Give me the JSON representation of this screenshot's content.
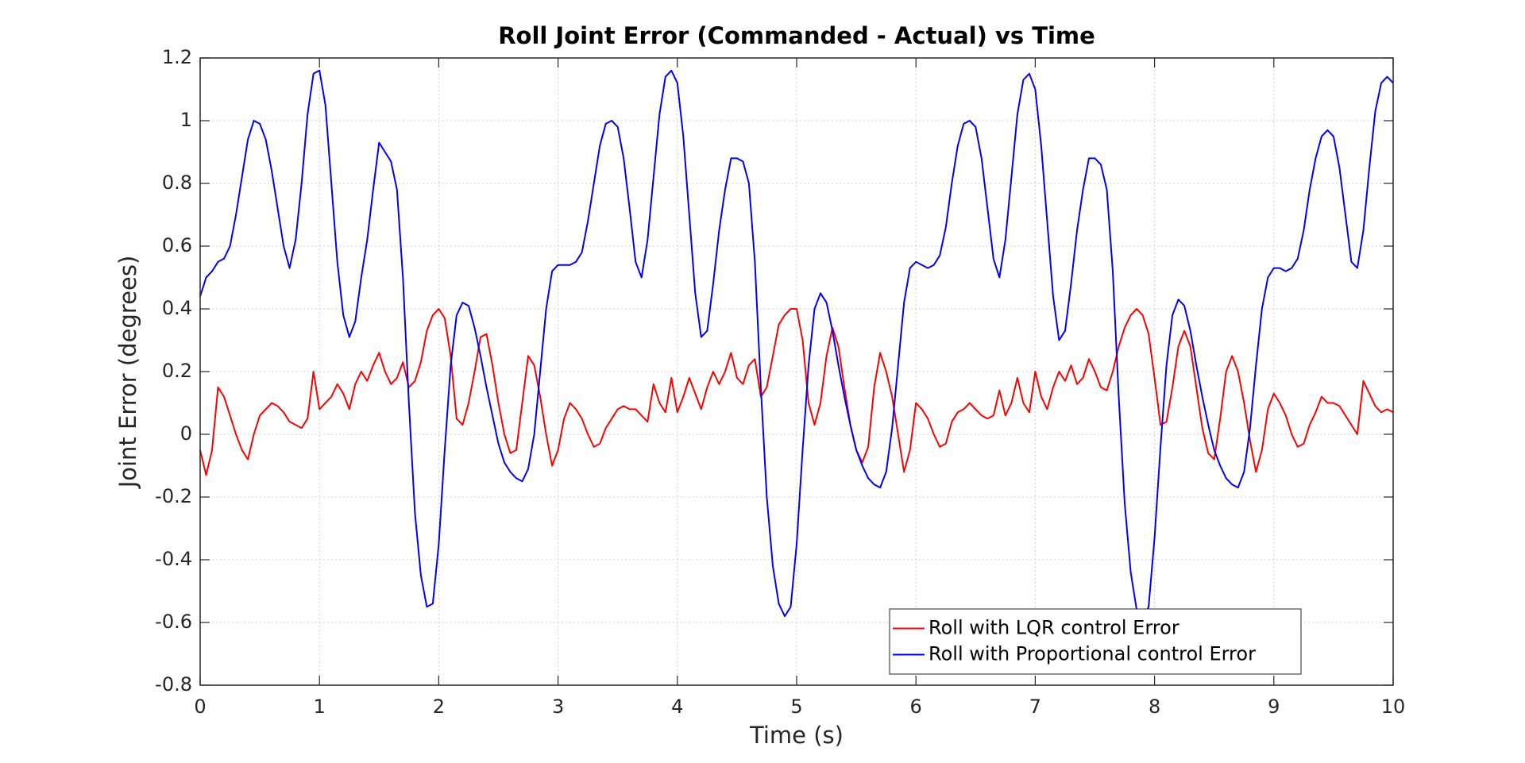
{
  "chart_data": {
    "type": "line",
    "title": "Roll Joint Error (Commanded - Actual) vs Time",
    "x_label": "Time (s)",
    "y_label": "Joint Error (degrees)",
    "xlim": [
      0,
      10
    ],
    "ylim": [
      -0.8,
      1.2
    ],
    "xticks": [
      0,
      1,
      2,
      3,
      4,
      5,
      6,
      7,
      8,
      9,
      10
    ],
    "yticks": [
      -0.8,
      -0.6,
      -0.4,
      -0.2,
      0,
      0.2,
      0.4,
      0.6,
      0.8,
      1,
      1.2
    ],
    "grid": true,
    "legend": "lower right",
    "x": [
      0,
      0.05,
      0.1,
      0.15,
      0.2,
      0.25,
      0.3,
      0.35,
      0.4,
      0.45,
      0.5,
      0.55,
      0.6,
      0.65,
      0.7,
      0.75,
      0.8,
      0.85,
      0.9,
      0.95,
      1,
      1.05,
      1.1,
      1.15,
      1.2,
      1.25,
      1.3,
      1.35,
      1.4,
      1.45,
      1.5,
      1.55,
      1.6,
      1.65,
      1.7,
      1.75,
      1.8,
      1.85,
      1.9,
      1.95,
      2,
      2.05,
      2.1,
      2.15,
      2.2,
      2.25,
      2.3,
      2.35,
      2.4,
      2.45,
      2.5,
      2.55,
      2.6,
      2.65,
      2.7,
      2.75,
      2.8,
      2.85,
      2.9,
      2.95,
      3,
      3.05,
      3.1,
      3.15,
      3.2,
      3.25,
      3.3,
      3.35,
      3.4,
      3.45,
      3.5,
      3.55,
      3.6,
      3.65,
      3.7,
      3.75,
      3.8,
      3.85,
      3.9,
      3.95,
      4,
      4.05,
      4.1,
      4.15,
      4.2,
      4.25,
      4.3,
      4.35,
      4.4,
      4.45,
      4.5,
      4.55,
      4.6,
      4.65,
      4.7,
      4.75,
      4.8,
      4.85,
      4.9,
      4.95,
      5,
      5.05,
      5.1,
      5.15,
      5.2,
      5.25,
      5.3,
      5.35,
      5.4,
      5.45,
      5.5,
      5.55,
      5.6,
      5.65,
      5.7,
      5.75,
      5.8,
      5.85,
      5.9,
      5.95,
      6,
      6.05,
      6.1,
      6.15,
      6.2,
      6.25,
      6.3,
      6.35,
      6.4,
      6.45,
      6.5,
      6.55,
      6.6,
      6.65,
      6.7,
      6.75,
      6.8,
      6.85,
      6.9,
      6.95,
      7,
      7.05,
      7.1,
      7.15,
      7.2,
      7.25,
      7.3,
      7.35,
      7.4,
      7.45,
      7.5,
      7.55,
      7.6,
      7.65,
      7.7,
      7.75,
      7.8,
      7.85,
      7.9,
      7.95,
      8,
      8.05,
      8.1,
      8.15,
      8.2,
      8.25,
      8.3,
      8.35,
      8.4,
      8.45,
      8.5,
      8.55,
      8.6,
      8.65,
      8.7,
      8.75,
      8.8,
      8.85,
      8.9,
      8.95,
      9,
      9.05,
      9.1,
      9.15,
      9.2,
      9.25,
      9.3,
      9.35,
      9.4,
      9.45,
      9.5,
      9.55,
      9.6,
      9.65,
      9.7,
      9.75,
      9.8,
      9.85,
      9.9,
      9.95,
      10
    ],
    "series": [
      {
        "name": "Roll with LQR control Error",
        "color": "#ff0000",
        "values": [
          -0.05,
          -0.13,
          -0.05,
          0.15,
          0.12,
          0.06,
          0.0,
          -0.05,
          -0.08,
          0.0,
          0.06,
          0.08,
          0.1,
          0.09,
          0.07,
          0.04,
          0.03,
          0.02,
          0.05,
          0.2,
          0.08,
          0.1,
          0.12,
          0.16,
          0.13,
          0.08,
          0.16,
          0.2,
          0.17,
          0.22,
          0.26,
          0.2,
          0.16,
          0.18,
          0.23,
          0.15,
          0.17,
          0.23,
          0.33,
          0.38,
          0.4,
          0.37,
          0.25,
          0.05,
          0.03,
          0.1,
          0.2,
          0.31,
          0.32,
          0.22,
          0.1,
          0.0,
          -0.06,
          -0.05,
          0.1,
          0.25,
          0.22,
          0.12,
          0.0,
          -0.1,
          -0.05,
          0.05,
          0.1,
          0.08,
          0.05,
          0.0,
          -0.04,
          -0.03,
          0.02,
          0.05,
          0.08,
          0.09,
          0.08,
          0.08,
          0.06,
          0.04,
          0.16,
          0.1,
          0.07,
          0.18,
          0.07,
          0.12,
          0.18,
          0.13,
          0.08,
          0.15,
          0.2,
          0.16,
          0.2,
          0.26,
          0.18,
          0.16,
          0.22,
          0.24,
          0.12,
          0.15,
          0.25,
          0.35,
          0.38,
          0.4,
          0.4,
          0.3,
          0.1,
          0.03,
          0.1,
          0.25,
          0.34,
          0.28,
          0.15,
          0.03,
          -0.05,
          -0.09,
          -0.04,
          0.15,
          0.26,
          0.2,
          0.12,
          0.0,
          -0.12,
          -0.05,
          0.1,
          0.08,
          0.05,
          0.0,
          -0.04,
          -0.03,
          0.04,
          0.07,
          0.08,
          0.1,
          0.08,
          0.06,
          0.05,
          0.06,
          0.14,
          0.06,
          0.1,
          0.18,
          0.1,
          0.07,
          0.2,
          0.12,
          0.08,
          0.15,
          0.2,
          0.17,
          0.22,
          0.16,
          0.18,
          0.24,
          0.2,
          0.15,
          0.14,
          0.2,
          0.28,
          0.34,
          0.38,
          0.4,
          0.38,
          0.32,
          0.18,
          0.03,
          0.04,
          0.15,
          0.28,
          0.33,
          0.28,
          0.15,
          0.02,
          -0.06,
          -0.08,
          0.05,
          0.2,
          0.25,
          0.2,
          0.1,
          -0.02,
          -0.12,
          -0.05,
          0.08,
          0.13,
          0.1,
          0.06,
          0.0,
          -0.04,
          -0.03,
          0.03,
          0.07,
          0.12,
          0.1,
          0.1,
          0.09,
          0.06,
          0.03,
          0.0,
          0.17,
          0.13,
          0.09,
          0.07,
          0.08,
          0.07
        ]
      },
      {
        "name": "Roll with Proportional control Error",
        "color": "#0000ff",
        "values": [
          0.44,
          0.5,
          0.52,
          0.55,
          0.56,
          0.6,
          0.7,
          0.82,
          0.94,
          1.0,
          0.99,
          0.94,
          0.84,
          0.72,
          0.6,
          0.53,
          0.62,
          0.8,
          1.02,
          1.15,
          1.16,
          1.05,
          0.8,
          0.55,
          0.38,
          0.31,
          0.36,
          0.5,
          0.62,
          0.78,
          0.93,
          0.9,
          0.87,
          0.78,
          0.5,
          0.1,
          -0.25,
          -0.45,
          -0.55,
          -0.54,
          -0.35,
          -0.05,
          0.22,
          0.38,
          0.42,
          0.41,
          0.34,
          0.25,
          0.15,
          0.06,
          -0.03,
          -0.09,
          -0.12,
          -0.14,
          -0.15,
          -0.11,
          0.0,
          0.2,
          0.4,
          0.52,
          0.54,
          0.54,
          0.54,
          0.55,
          0.58,
          0.68,
          0.8,
          0.92,
          0.99,
          1.0,
          0.98,
          0.88,
          0.72,
          0.55,
          0.5,
          0.62,
          0.82,
          1.02,
          1.14,
          1.16,
          1.12,
          0.95,
          0.7,
          0.45,
          0.31,
          0.33,
          0.48,
          0.65,
          0.78,
          0.88,
          0.88,
          0.87,
          0.8,
          0.55,
          0.15,
          -0.2,
          -0.42,
          -0.54,
          -0.58,
          -0.55,
          -0.35,
          -0.05,
          0.22,
          0.4,
          0.45,
          0.42,
          0.33,
          0.22,
          0.12,
          0.03,
          -0.05,
          -0.1,
          -0.14,
          -0.16,
          -0.17,
          -0.12,
          0.02,
          0.22,
          0.42,
          0.53,
          0.55,
          0.54,
          0.53,
          0.54,
          0.57,
          0.66,
          0.8,
          0.92,
          0.99,
          1.0,
          0.98,
          0.88,
          0.72,
          0.56,
          0.5,
          0.62,
          0.82,
          1.02,
          1.13,
          1.15,
          1.1,
          0.92,
          0.68,
          0.44,
          0.3,
          0.33,
          0.48,
          0.65,
          0.78,
          0.88,
          0.88,
          0.86,
          0.78,
          0.52,
          0.12,
          -0.22,
          -0.44,
          -0.56,
          -0.59,
          -0.55,
          -0.33,
          -0.04,
          0.22,
          0.38,
          0.43,
          0.41,
          0.33,
          0.22,
          0.12,
          0.03,
          -0.05,
          -0.1,
          -0.14,
          -0.16,
          -0.17,
          -0.12,
          0.02,
          0.22,
          0.4,
          0.5,
          0.53,
          0.53,
          0.52,
          0.53,
          0.56,
          0.65,
          0.78,
          0.88,
          0.95,
          0.97,
          0.95,
          0.85,
          0.7,
          0.55,
          0.53,
          0.65,
          0.85,
          1.03,
          1.12,
          1.14,
          1.12
        ]
      }
    ]
  }
}
